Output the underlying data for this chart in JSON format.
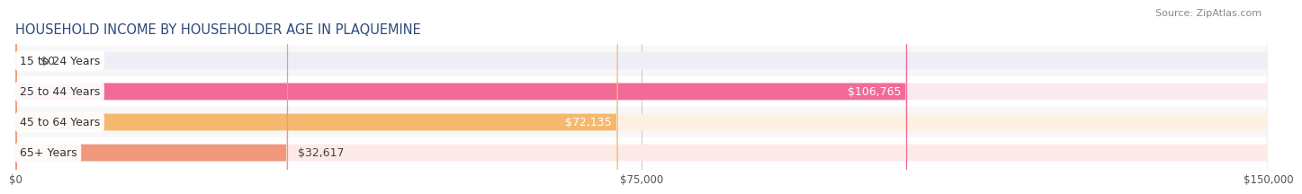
{
  "title": "HOUSEHOLD INCOME BY HOUSEHOLDER AGE IN PLAQUEMINE",
  "source": "Source: ZipAtlas.com",
  "categories": [
    "15 to 24 Years",
    "25 to 44 Years",
    "45 to 64 Years",
    "65+ Years"
  ],
  "values": [
    0,
    106765,
    72135,
    32617
  ],
  "value_labels": [
    "$0",
    "$106,765",
    "$72,135",
    "$32,617"
  ],
  "bar_colors": [
    "#a8aedd",
    "#f26a96",
    "#f5b86e",
    "#f0977c"
  ],
  "bar_bg_colors": [
    "#eeeef6",
    "#fce9ef",
    "#fdf1e2",
    "#fdeae6"
  ],
  "row_bg_color": "#f5f5f5",
  "xlim": [
    0,
    150000
  ],
  "xticks": [
    0,
    75000,
    150000
  ],
  "xtick_labels": [
    "$0",
    "$75,000",
    "$150,000"
  ],
  "title_fontsize": 10.5,
  "source_fontsize": 8,
  "label_fontsize": 9,
  "tick_fontsize": 8.5,
  "background_color": "#ffffff",
  "bar_height": 0.55,
  "value_label_colors_inside": [
    "#ffffff",
    "#ffffff",
    "#ffffff",
    "#555555"
  ],
  "value_label_inside": [
    false,
    true,
    true,
    false
  ]
}
